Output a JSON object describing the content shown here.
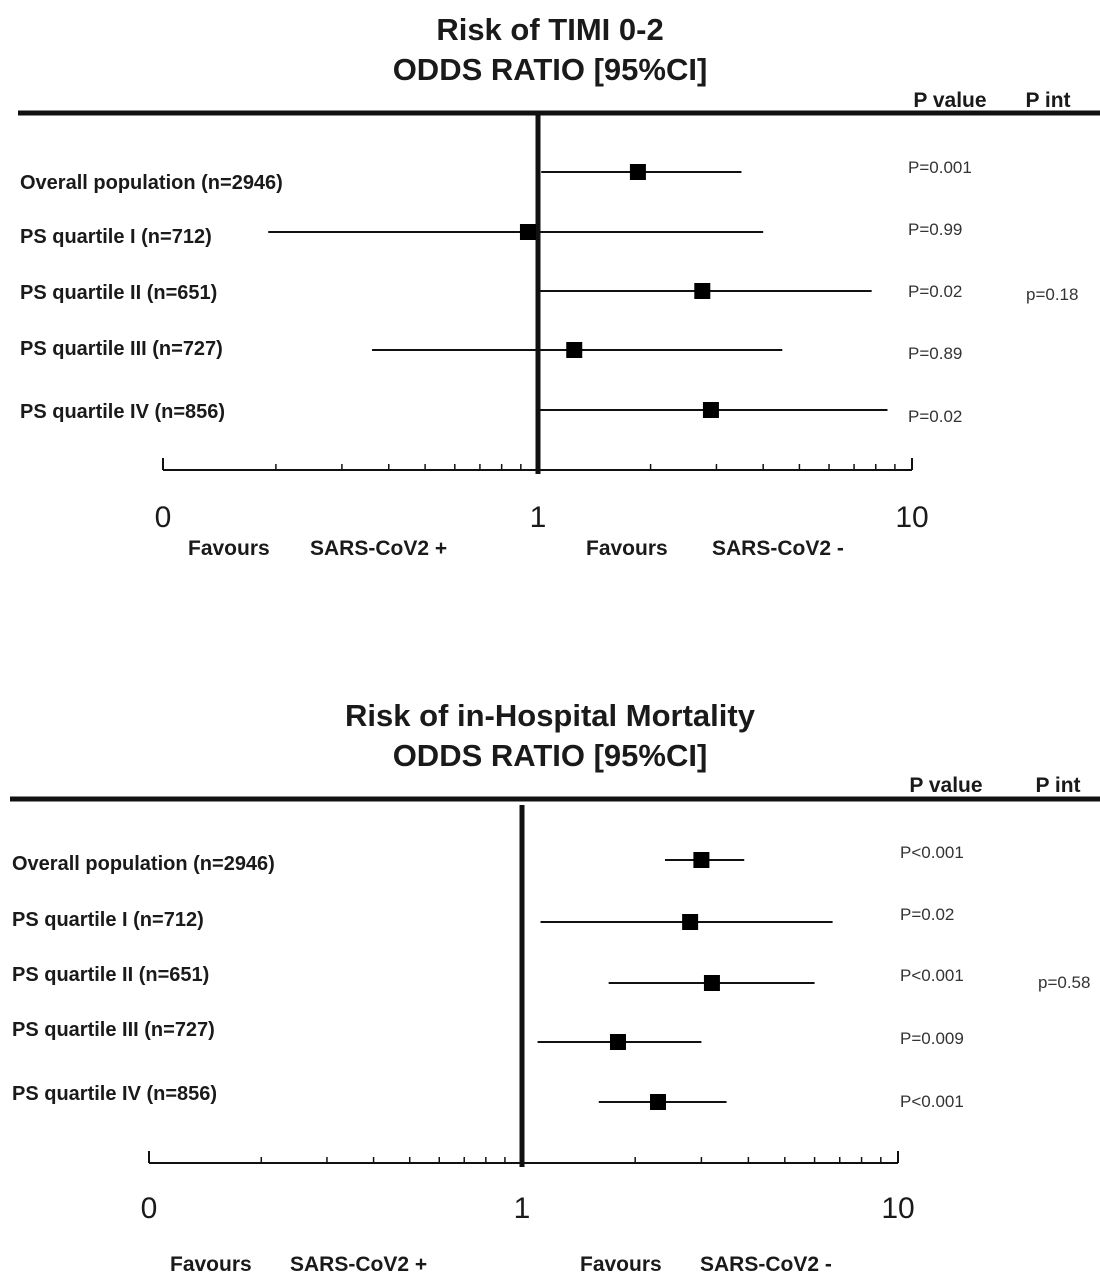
{
  "chart_data": [
    {
      "type": "forest",
      "title": "Risk of TIMI 0-2",
      "subtitle": "ODDS RATIO [95%CI]",
      "x_scale": "log",
      "x_ticks": [
        "0",
        "1",
        "10"
      ],
      "column_headers": {
        "p_value": "P value",
        "p_int": "P int"
      },
      "favours_left": {
        "label": "Favours",
        "group": "SARS-CoV2 +"
      },
      "favours_right": {
        "label": "Favours",
        "group": "SARS-CoV2 -"
      },
      "rows": [
        {
          "label": "Overall population  (n=2946)",
          "or": 1.85,
          "lo": 1.02,
          "hi": 3.5,
          "p": "P=0.001"
        },
        {
          "label": "PS quartile I (n=712)",
          "or": 0.94,
          "lo": 0.19,
          "hi": 4.0,
          "p": "P=0.99"
        },
        {
          "label": "PS quartile II (n=651)",
          "or": 2.75,
          "lo": 1.0,
          "hi": 7.8,
          "p": "P=0.02"
        },
        {
          "label": "PS quartile III (n=727)",
          "or": 1.25,
          "lo": 0.36,
          "hi": 4.5,
          "p": "P=0.89"
        },
        {
          "label": "PS quartile IV (n=856)",
          "or": 2.9,
          "lo": 1.0,
          "hi": 8.6,
          "p": "P=0.02"
        }
      ],
      "p_int": "p=0.18"
    },
    {
      "type": "forest",
      "title": "Risk of in-Hospital Mortality",
      "subtitle": "ODDS RATIO [95%CI]",
      "x_scale": "log",
      "x_ticks": [
        "0",
        "1",
        "10"
      ],
      "column_headers": {
        "p_value": "P value",
        "p_int": "P int"
      },
      "favours_left": {
        "label": "Favours",
        "group": "SARS-CoV2 +"
      },
      "favours_right": {
        "label": "Favours",
        "group": "SARS-CoV2 -"
      },
      "rows": [
        {
          "label": "Overall population  (n=2946)",
          "or": 3.0,
          "lo": 2.4,
          "hi": 3.9,
          "p": "P<0.001"
        },
        {
          "label": "PS quartile I (n=712)",
          "or": 2.8,
          "lo": 1.12,
          "hi": 6.7,
          "p": "P=0.02"
        },
        {
          "label": "PS quartile II (n=651)",
          "or": 3.2,
          "lo": 1.7,
          "hi": 6.0,
          "p": "P<0.001"
        },
        {
          "label": "PS quartile III (n=727)",
          "or": 1.8,
          "lo": 1.1,
          "hi": 3.0,
          "p": "P=0.009"
        },
        {
          "label": "PS quartile IV (n=856)",
          "or": 2.3,
          "lo": 1.6,
          "hi": 3.5,
          "p": "P<0.001"
        }
      ],
      "p_int": "p=0.58"
    }
  ]
}
